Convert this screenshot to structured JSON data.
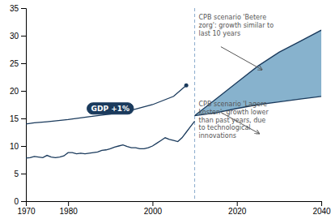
{
  "chart_data": {
    "type": "line",
    "xlim": [
      1970,
      2040
    ],
    "ylim": [
      0,
      35
    ],
    "xticks": [
      1970,
      1980,
      2000,
      2020,
      2040
    ],
    "yticks": [
      0,
      5,
      10,
      15,
      20,
      25,
      30,
      35
    ],
    "vline": 2010,
    "series": [
      {
        "type": "line",
        "color": "#1a3a5c",
        "x": [
          1970,
          1971,
          1972,
          1973,
          1974,
          1975,
          1976,
          1977,
          1978,
          1979,
          1980,
          1981,
          1982,
          1983,
          1984,
          1985,
          1986,
          1987,
          1988,
          1989,
          1990,
          1991,
          1992,
          1993,
          1994,
          1995,
          1996,
          1997,
          1998,
          1999,
          2000,
          2001,
          2002,
          2003,
          2004,
          2005,
          2006,
          2007,
          2008,
          2009,
          2010
        ],
        "values": [
          7.8,
          7.9,
          8.1,
          8.0,
          7.9,
          8.3,
          8.0,
          7.9,
          8.0,
          8.2,
          8.8,
          8.8,
          8.6,
          8.7,
          8.6,
          8.7,
          8.8,
          8.9,
          9.2,
          9.3,
          9.5,
          9.8,
          10.0,
          10.2,
          9.9,
          9.7,
          9.7,
          9.5,
          9.5,
          9.7,
          10.0,
          10.5,
          11.0,
          11.5,
          11.2,
          11.0,
          10.8,
          11.5,
          12.5,
          13.5,
          14.5
        ]
      },
      {
        "type": "line",
        "color": "#1a3a5c",
        "marker": "end",
        "x": [
          1970,
          1972,
          1975,
          1980,
          1985,
          1990,
          1995,
          2000,
          2005,
          2008
        ],
        "values": [
          14.0,
          14.2,
          14.4,
          14.8,
          15.3,
          15.8,
          16.5,
          17.5,
          19.0,
          21.0
        ]
      },
      {
        "type": "area",
        "color": "#7aaac8",
        "x": [
          2010,
          2015,
          2020,
          2025,
          2030,
          2035,
          2040
        ],
        "values": [
          15.5,
          18.5,
          21.5,
          24.5,
          27.0,
          29.0,
          31.0
        ],
        "low": [
          15.5,
          16.0,
          16.8,
          17.5,
          18.0,
          18.5,
          19.0
        ]
      }
    ],
    "annotations": [
      {
        "text": "GDP +1%",
        "x": 1990,
        "y": 16.8
      },
      {
        "text": "CPB scenario 'Betere\nzorg': growth similar to\nlast 10 years"
      },
      {
        "text": "CPB scenario 'Lagere\nkosten': growth lower\nthan past years, due\nto technological\ninnovations"
      }
    ]
  }
}
